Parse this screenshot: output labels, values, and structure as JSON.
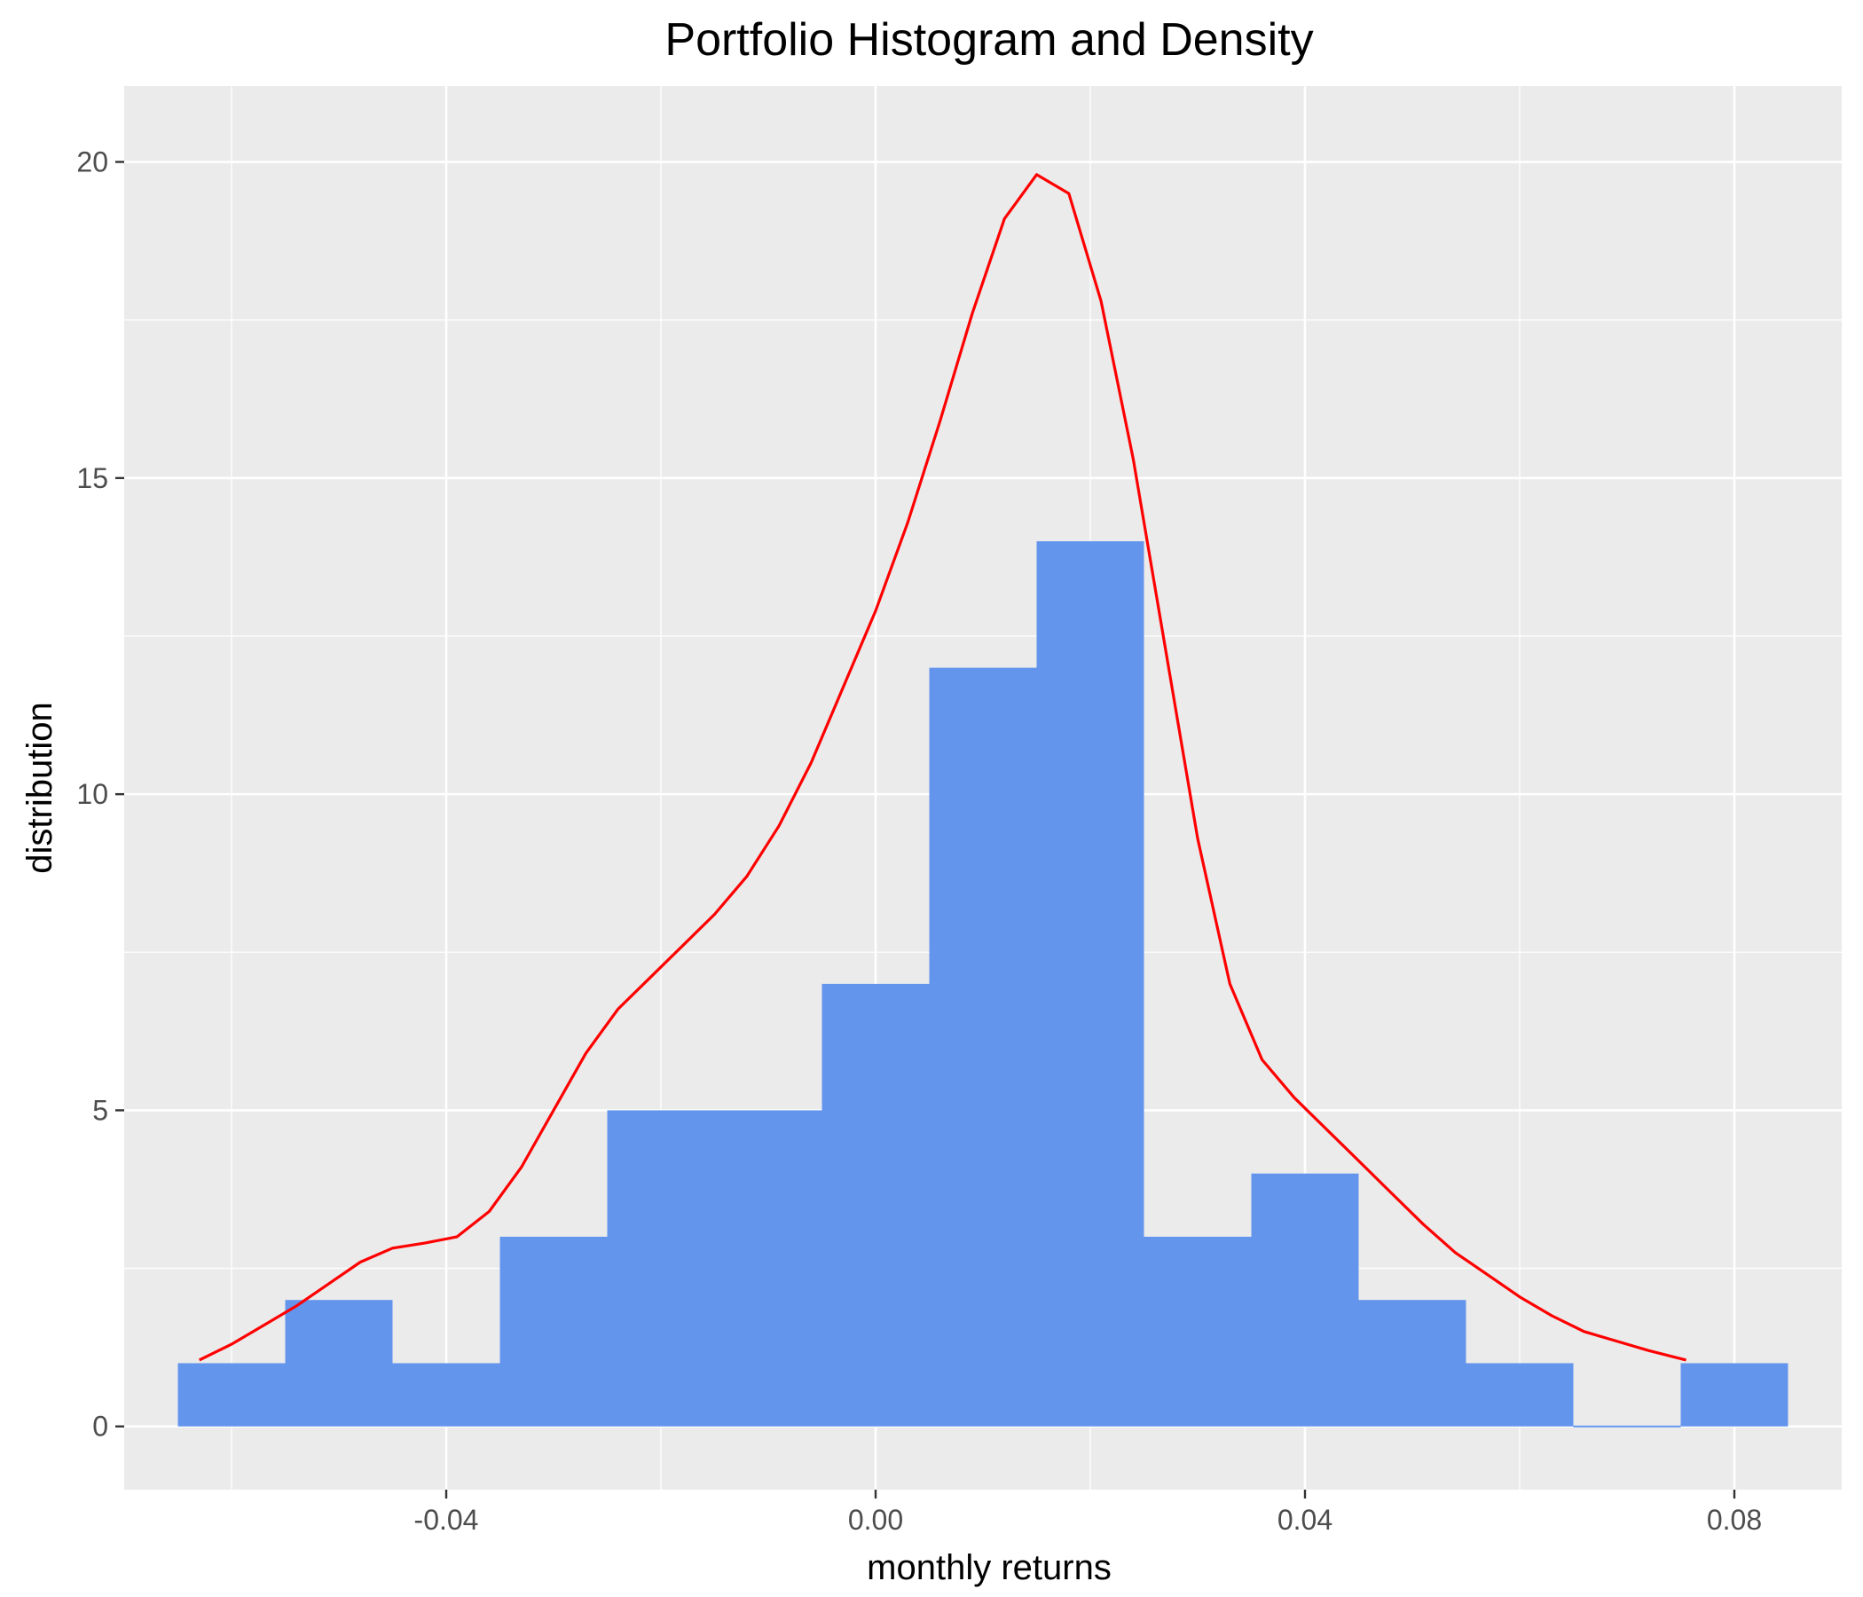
{
  "chart_data": {
    "type": "histogram",
    "title": "Portfolio Histogram and Density",
    "xlabel": "monthly returns",
    "ylabel": "distribution",
    "xlim": [
      -0.07,
      0.09
    ],
    "ylim": [
      -1,
      21.2
    ],
    "x_ticks": [
      {
        "value": -0.04,
        "label": "-0.04"
      },
      {
        "value": 0.0,
        "label": "0.00"
      },
      {
        "value": 0.04,
        "label": "0.04"
      },
      {
        "value": 0.08,
        "label": "0.08"
      }
    ],
    "y_ticks": [
      {
        "value": 0,
        "label": "0"
      },
      {
        "value": 5,
        "label": "5"
      },
      {
        "value": 10,
        "label": "10"
      },
      {
        "value": 15,
        "label": "15"
      },
      {
        "value": 20,
        "label": "20"
      }
    ],
    "grid": true,
    "bin_width": 0.01,
    "bins": [
      {
        "x0": -0.065,
        "x1": -0.055,
        "count": 1
      },
      {
        "x0": -0.055,
        "x1": -0.045,
        "count": 2
      },
      {
        "x0": -0.045,
        "x1": -0.035,
        "count": 1
      },
      {
        "x0": -0.035,
        "x1": -0.025,
        "count": 3
      },
      {
        "x0": -0.025,
        "x1": -0.015,
        "count": 5
      },
      {
        "x0": -0.015,
        "x1": -0.005,
        "count": 5
      },
      {
        "x0": -0.005,
        "x1": 0.005,
        "count": 7
      },
      {
        "x0": 0.005,
        "x1": 0.015,
        "count": 12
      },
      {
        "x0": 0.015,
        "x1": 0.025,
        "count": 14
      },
      {
        "x0": 0.025,
        "x1": 0.035,
        "count": 3
      },
      {
        "x0": 0.035,
        "x1": 0.045,
        "count": 4
      },
      {
        "x0": 0.045,
        "x1": 0.055,
        "count": 2
      },
      {
        "x0": 0.055,
        "x1": 0.065,
        "count": 1
      },
      {
        "x0": 0.065,
        "x1": 0.075,
        "count": 0
      },
      {
        "x0": 0.075,
        "x1": 0.085,
        "count": 1
      }
    ],
    "density": [
      [
        -0.063,
        1.05
      ],
      [
        -0.06,
        1.3
      ],
      [
        -0.057,
        1.6
      ],
      [
        -0.054,
        1.9
      ],
      [
        -0.051,
        2.25
      ],
      [
        -0.048,
        2.6
      ],
      [
        -0.045,
        2.82
      ],
      [
        -0.042,
        2.9
      ],
      [
        -0.039,
        3.0
      ],
      [
        -0.036,
        3.4
      ],
      [
        -0.033,
        4.1
      ],
      [
        -0.03,
        5.0
      ],
      [
        -0.027,
        5.9
      ],
      [
        -0.024,
        6.6
      ],
      [
        -0.021,
        7.1
      ],
      [
        -0.018,
        7.6
      ],
      [
        -0.015,
        8.1
      ],
      [
        -0.012,
        8.7
      ],
      [
        -0.009,
        9.5
      ],
      [
        -0.006,
        10.5
      ],
      [
        -0.003,
        11.7
      ],
      [
        0.0,
        12.9
      ],
      [
        0.003,
        14.3
      ],
      [
        0.006,
        15.9
      ],
      [
        0.009,
        17.6
      ],
      [
        0.012,
        19.1
      ],
      [
        0.015,
        19.8
      ],
      [
        0.018,
        19.5
      ],
      [
        0.021,
        17.8
      ],
      [
        0.024,
        15.3
      ],
      [
        0.027,
        12.3
      ],
      [
        0.03,
        9.3
      ],
      [
        0.033,
        7.0
      ],
      [
        0.036,
        5.8
      ],
      [
        0.039,
        5.2
      ],
      [
        0.042,
        4.7
      ],
      [
        0.045,
        4.2
      ],
      [
        0.048,
        3.7
      ],
      [
        0.051,
        3.2
      ],
      [
        0.054,
        2.75
      ],
      [
        0.057,
        2.4
      ],
      [
        0.06,
        2.05
      ],
      [
        0.063,
        1.75
      ],
      [
        0.066,
        1.5
      ],
      [
        0.069,
        1.35
      ],
      [
        0.072,
        1.2
      ],
      [
        0.0755,
        1.05
      ]
    ],
    "colors": {
      "bar": "#6495ED",
      "density_line": "#FF0000",
      "panel_background": "#EBEBEB",
      "grid_line": "#FFFFFF"
    }
  }
}
